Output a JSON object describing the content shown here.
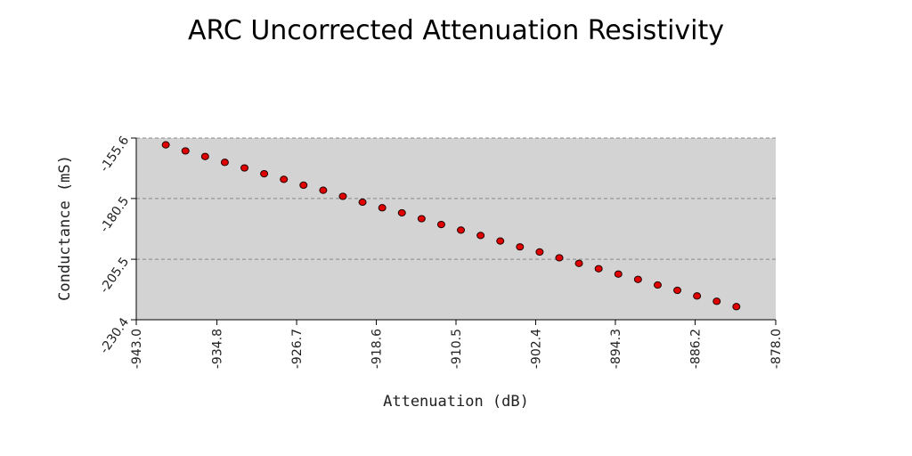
{
  "chart_data": {
    "type": "scatter",
    "title": "ARC Uncorrected Attenuation Resistivity",
    "xlabel": "Attenuation (dB)",
    "ylabel": "Conductance (mS)",
    "xlim": [
      -943.0,
      -878.0
    ],
    "ylim": [
      -230.4,
      -155.6
    ],
    "xticks": [
      "-943.0",
      "-934.8",
      "-926.7",
      "-918.6",
      "-910.5",
      "-902.4",
      "-894.3",
      "-886.2",
      "-878.0"
    ],
    "yticks": [
      "-230.4",
      "-205.5",
      "-180.5",
      "-155.6"
    ],
    "grid": "horizontal-dashed",
    "x": [
      -940.0,
      -938.0,
      -936.0,
      -934.0,
      -932.0,
      -930.0,
      -928.0,
      -926.0,
      -924.0,
      -922.0,
      -920.0,
      -918.0,
      -916.0,
      -914.0,
      -912.0,
      -910.0,
      -908.0,
      -906.0,
      -904.0,
      -902.0,
      -900.0,
      -898.0,
      -896.0,
      -894.0,
      -892.0,
      -890.0,
      -888.0,
      -886.0,
      -884.0,
      -882.0
    ],
    "y": [
      -158.4,
      -160.9,
      -163.2,
      -165.6,
      -167.9,
      -170.3,
      -172.6,
      -175.0,
      -177.1,
      -179.6,
      -182.0,
      -184.3,
      -186.4,
      -188.8,
      -191.2,
      -193.5,
      -195.7,
      -198.0,
      -200.4,
      -202.5,
      -204.9,
      -207.2,
      -209.4,
      -211.6,
      -213.8,
      -216.1,
      -218.3,
      -220.6,
      -222.8,
      -225.0
    ],
    "colors": {
      "plot_bg": "#d3d3d3",
      "marker_fill": "#e00000",
      "marker_edge": "#200000",
      "grid": "#888888"
    }
  }
}
